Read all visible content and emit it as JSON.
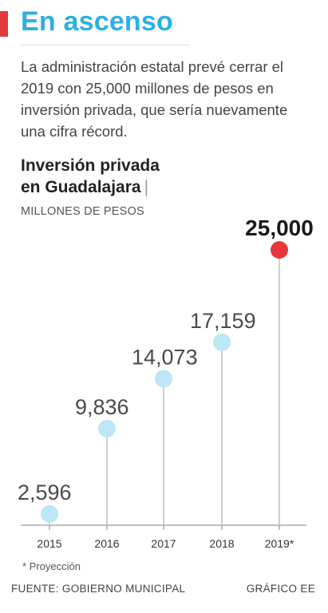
{
  "header": {
    "headline": "En ascenso",
    "intro": "La administración estatal prevé cerrar el 2019 con 25,000 millones de pesos en inversión privada, que sería nuevamente una cifra récord."
  },
  "chart_data": {
    "type": "scatter",
    "title_line1": "Inversión privada",
    "title_line2": "en Guadalajara",
    "title_separator": "|",
    "unit": "MILLONES DE PESOS",
    "categories": [
      "2015",
      "2016",
      "2017",
      "2018",
      "2019*"
    ],
    "values": [
      2596,
      9836,
      14073,
      17159,
      25000
    ],
    "value_labels": [
      "2,596",
      "9,836",
      "14,073",
      "17,159",
      "25,000"
    ],
    "highlight_index": 4,
    "ylim": [
      0,
      25000
    ],
    "grid": false,
    "colors": {
      "point": "#bde6f6",
      "highlight": "#e8373c",
      "stem": "#cfcfcf",
      "axis": "#9a9a9a"
    }
  },
  "footer": {
    "footnote": "* Proyección",
    "source": "FUENTE: GOBIERNO MUNICIPAL",
    "credit": "GRÁFICO EE"
  }
}
